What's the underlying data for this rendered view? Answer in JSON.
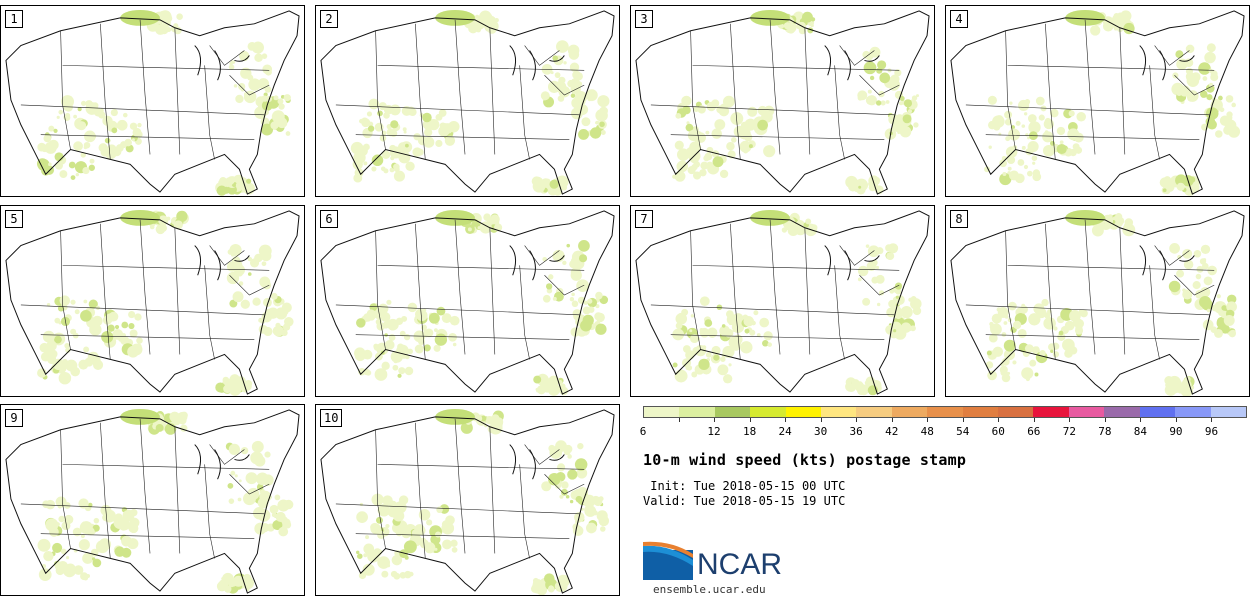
{
  "members": [
    {
      "label": "1"
    },
    {
      "label": "2"
    },
    {
      "label": "3"
    },
    {
      "label": "4"
    },
    {
      "label": "5"
    },
    {
      "label": "6"
    },
    {
      "label": "7"
    },
    {
      "label": "8"
    },
    {
      "label": "9"
    },
    {
      "label": "10"
    }
  ],
  "legend": {
    "ticks": [
      "6",
      "12",
      "18",
      "24",
      "30",
      "36",
      "42",
      "48",
      "54",
      "60",
      "66",
      "72",
      "78",
      "84",
      "90",
      "96"
    ],
    "colors": [
      "#eef6c8",
      "#dcefa0",
      "#a8c860",
      "#d6ea30",
      "#fff200",
      "#ffe680",
      "#f6cc80",
      "#eeaa60",
      "#e8904a",
      "#e07e40",
      "#d87040",
      "#e8143c",
      "#e85aa0",
      "#9a6aaa",
      "#6070f0",
      "#8898f8",
      "#b8c8f8"
    ]
  },
  "title": "10-m wind speed (kts) postage stamp",
  "init": " Init: Tue 2018-05-15 00 UTC",
  "valid": "Valid: Tue 2018-05-15 19 UTC",
  "logo": {
    "name": "NCAR",
    "site": "ensemble.ucar.edu"
  }
}
